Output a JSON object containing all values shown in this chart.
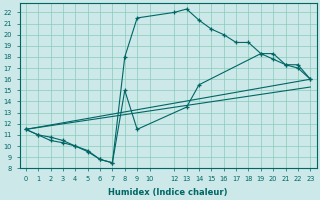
{
  "background_color": "#cce8e8",
  "grid_color": "#88ccbb",
  "line_color": "#006666",
  "xlabel": "Humidex (Indice chaleur)",
  "xlim": [
    -0.5,
    23.5
  ],
  "ylim": [
    8,
    22.8
  ],
  "xticks": [
    0,
    1,
    2,
    3,
    4,
    5,
    6,
    7,
    8,
    9,
    10,
    12,
    13,
    14,
    15,
    16,
    17,
    18,
    19,
    20,
    21,
    22,
    23
  ],
  "yticks": [
    8,
    9,
    10,
    11,
    12,
    13,
    14,
    15,
    16,
    17,
    18,
    19,
    20,
    21,
    22
  ],
  "curve1_x": [
    0,
    1,
    2,
    3,
    4,
    5,
    6,
    7,
    8,
    9,
    12,
    13,
    14,
    15,
    16,
    17,
    18,
    19,
    20,
    21,
    22,
    23
  ],
  "curve1_y": [
    11.5,
    11.0,
    10.8,
    10.5,
    10.0,
    9.6,
    8.8,
    8.5,
    18.0,
    21.5,
    22.0,
    22.3,
    21.3,
    20.5,
    20.0,
    19.3,
    19.3,
    18.3,
    18.3,
    17.3,
    17.3,
    16.0
  ],
  "curve2_x": [
    0,
    1,
    2,
    3,
    4,
    5,
    6,
    7,
    8,
    9,
    13,
    14,
    19,
    20,
    21,
    22,
    23
  ],
  "curve2_y": [
    11.5,
    11.0,
    10.5,
    10.3,
    10.0,
    9.5,
    8.8,
    8.5,
    15.0,
    11.5,
    13.5,
    15.5,
    18.3,
    17.8,
    17.3,
    17.0,
    16.0
  ],
  "line3_x": [
    0,
    23
  ],
  "line3_y": [
    11.5,
    16.0
  ],
  "line4_x": [
    0,
    23
  ],
  "line4_y": [
    11.5,
    15.3
  ]
}
